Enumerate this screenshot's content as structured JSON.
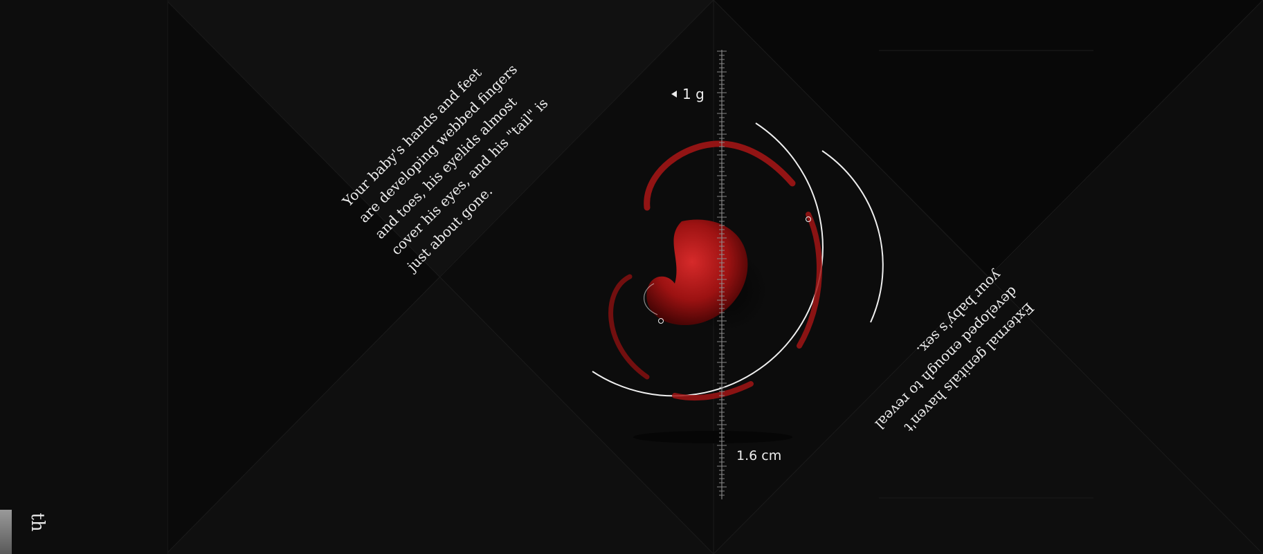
{
  "sidebar": {
    "label": "th"
  },
  "captions": {
    "top": [
      "Your baby's hands and feet",
      "are developing webbed fingers",
      "and toes, his eyelids almost",
      "cover his eyes, and his \"tail\" is",
      "just about gone."
    ],
    "bottom": [
      "External genitals haven't",
      "developed enough to reveal",
      "your baby's sex."
    ]
  },
  "measurements": {
    "weight": "1 g",
    "length": "1.6 cm"
  },
  "colors": {
    "background": "#0b0b0b",
    "embryo": "#b01616",
    "ring": "#f0f0f0"
  },
  "icons": {
    "weight_marker": "left-arrow-icon",
    "hotspot": "info-dot-icon"
  }
}
